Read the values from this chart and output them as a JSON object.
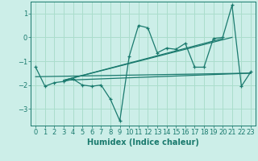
{
  "xlabel": "Humidex (Indice chaleur)",
  "background_color": "#cceee8",
  "grid_color": "#aaddcc",
  "line_color": "#1a7a6e",
  "xlim": [
    -0.5,
    23.5
  ],
  "ylim": [
    -3.7,
    1.5
  ],
  "yticks": [
    -3,
    -2,
    -1,
    0,
    1
  ],
  "xticks": [
    0,
    1,
    2,
    3,
    4,
    5,
    6,
    7,
    8,
    9,
    10,
    11,
    12,
    13,
    14,
    15,
    16,
    17,
    18,
    19,
    20,
    21,
    22,
    23
  ],
  "main_x": [
    0,
    1,
    2,
    3,
    4,
    5,
    6,
    7,
    8,
    9,
    10,
    11,
    12,
    13,
    14,
    15,
    16,
    17,
    18,
    19,
    20,
    21,
    22,
    23
  ],
  "main_y": [
    -1.25,
    -2.05,
    -1.9,
    -1.85,
    -1.75,
    -2.0,
    -2.05,
    -2.0,
    -2.6,
    -3.5,
    -0.8,
    0.5,
    0.4,
    -0.65,
    -0.45,
    -0.5,
    -0.25,
    -1.25,
    -1.25,
    -0.05,
    0.0,
    1.35,
    -2.05,
    -1.45
  ],
  "line2_x": [
    0,
    23
  ],
  "line2_y": [
    -1.65,
    -1.5
  ],
  "line3_x": [
    3,
    23
  ],
  "line3_y": [
    -1.8,
    -1.5
  ],
  "line4_x": [
    3,
    20
  ],
  "line4_y": [
    -1.8,
    -0.05
  ],
  "line5_x": [
    3,
    21
  ],
  "line5_y": [
    -1.8,
    0.0
  ]
}
